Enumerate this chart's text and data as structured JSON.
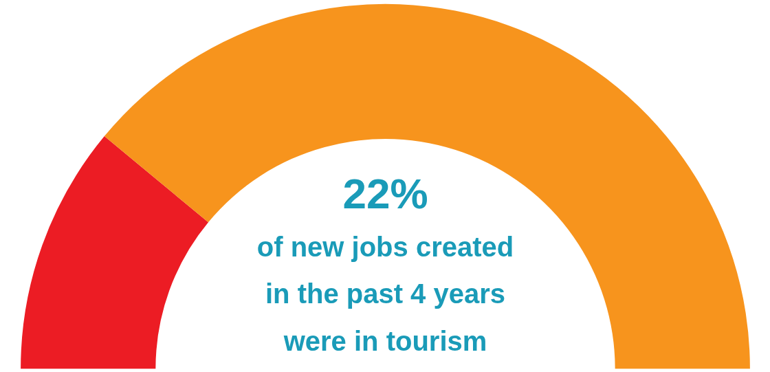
{
  "chart_data": {
    "type": "donut",
    "categories": [
      null,
      null
    ],
    "values": [
      22,
      78
    ],
    "colors": [
      "#ec1c24",
      "#f7941d"
    ],
    "annotations": [
      "22%",
      "of new jobs created in the past 4 years were in tourism"
    ]
  }
}
